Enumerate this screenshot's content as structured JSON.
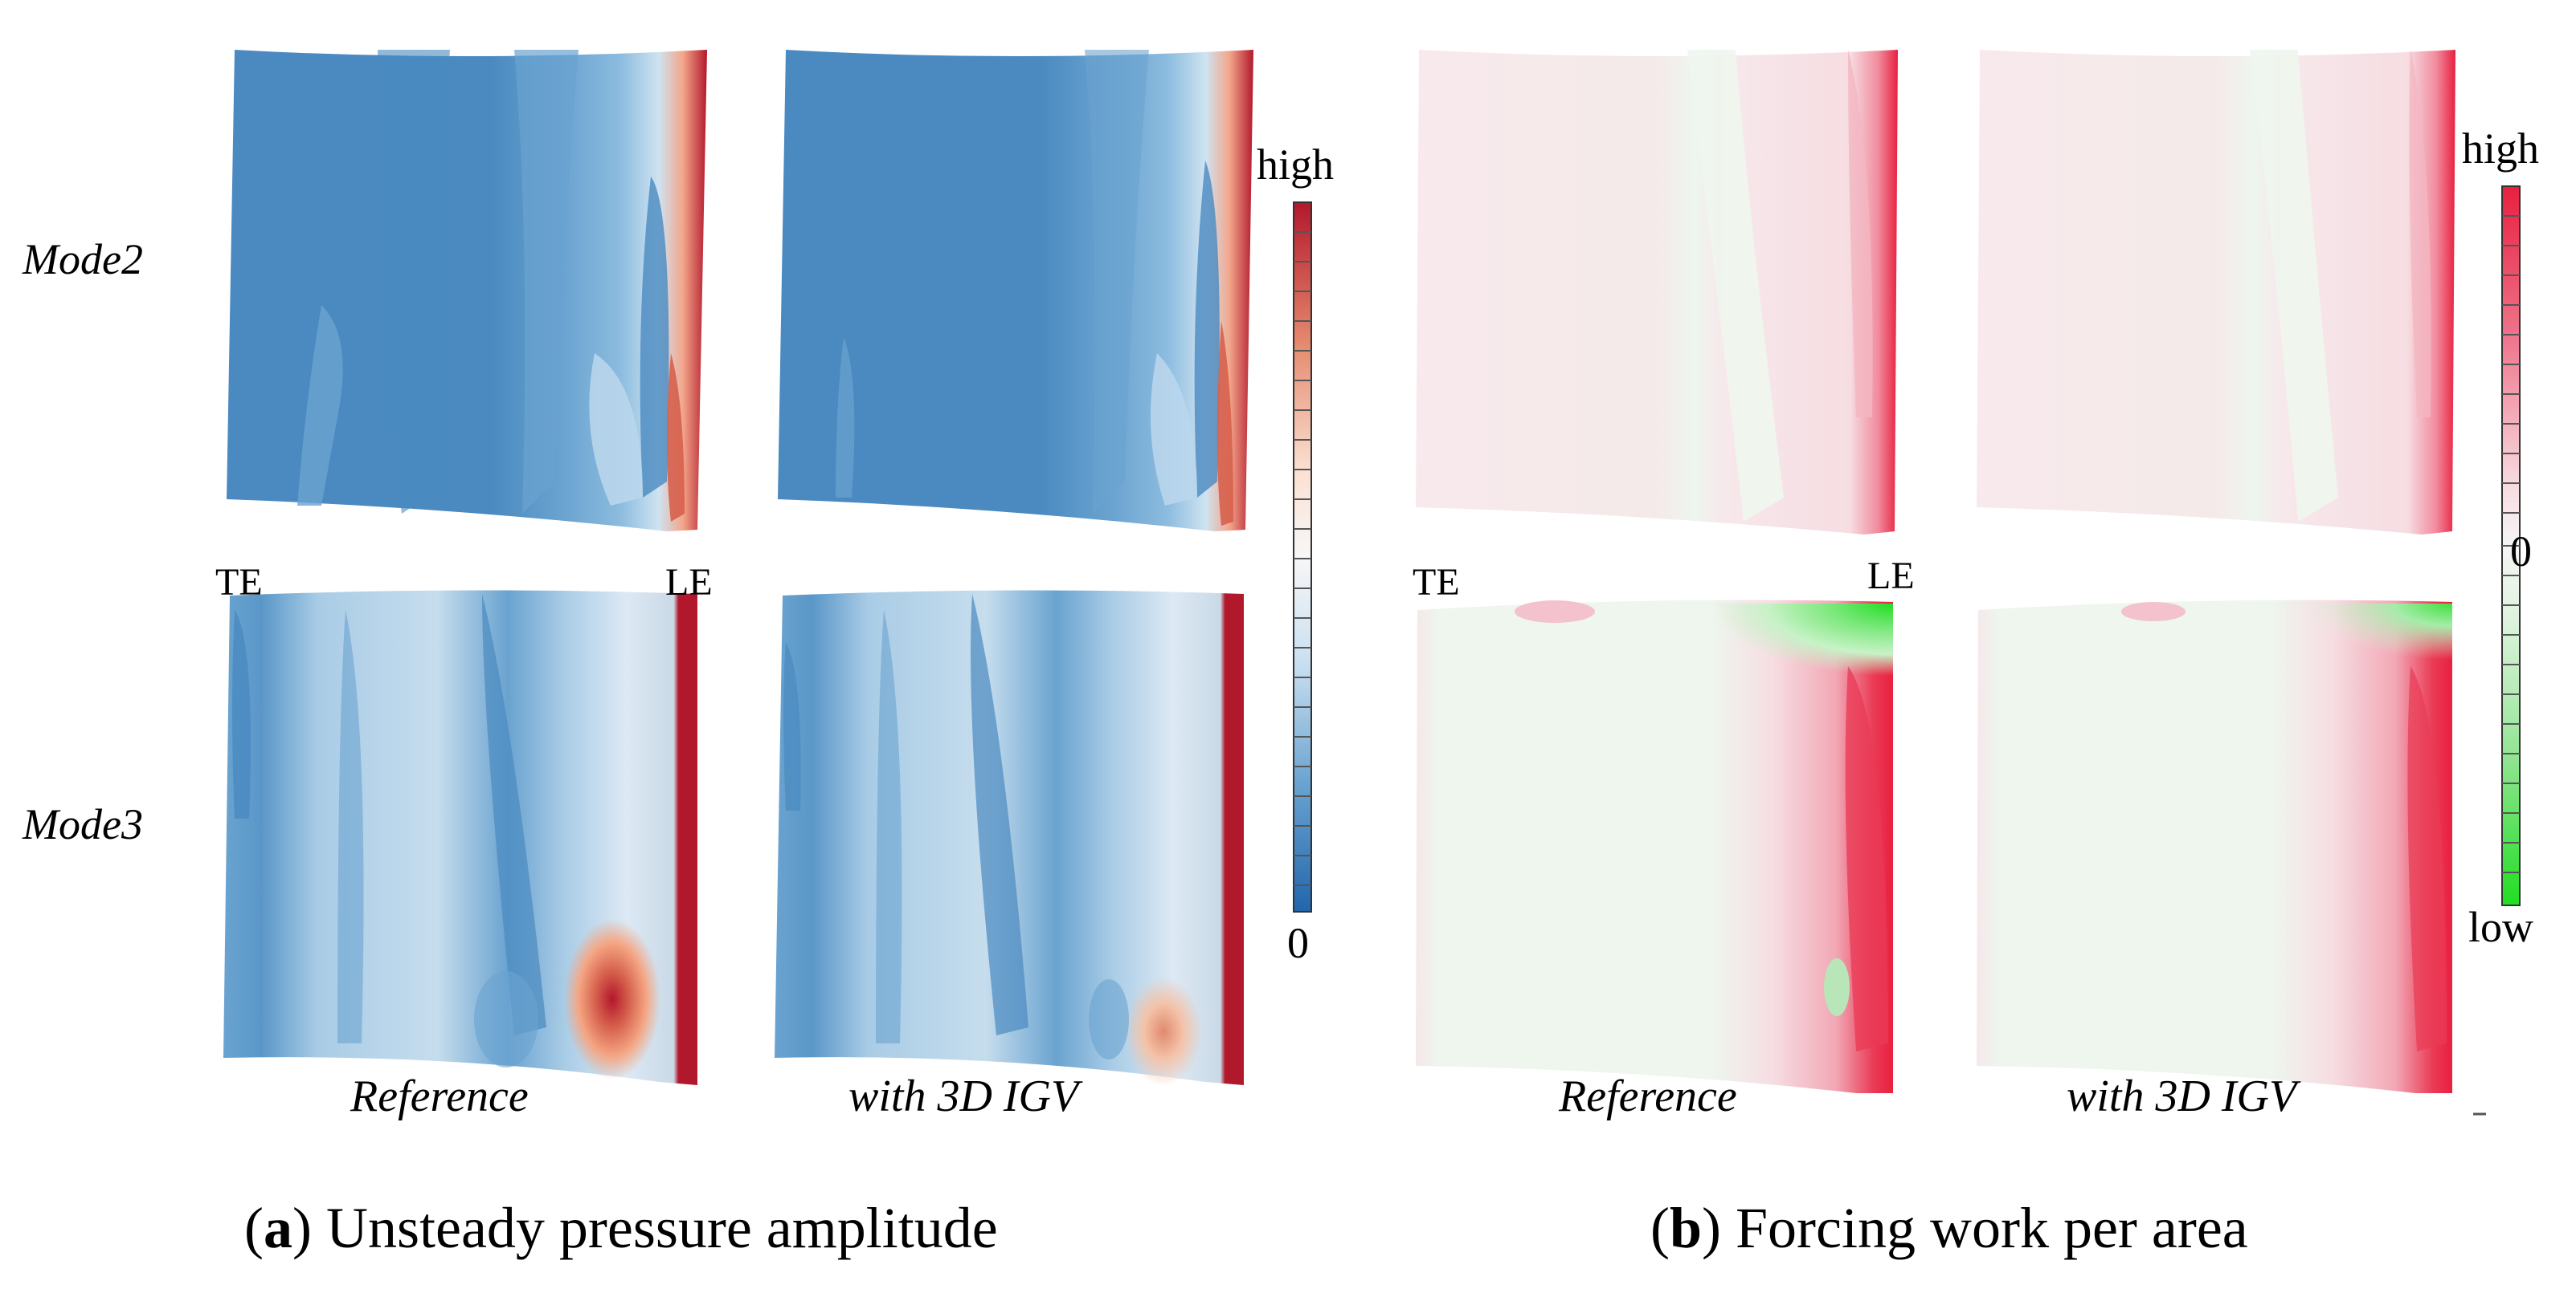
{
  "panel_a": {
    "caption_letter": "a",
    "caption_text": "Unsteady pressure amplitude",
    "row_labels": [
      "Mode2",
      "Mode3"
    ],
    "column_labels": [
      "Reference",
      "with 3D IGV"
    ],
    "edge_labels": {
      "trailing": "TE",
      "leading": "LE"
    },
    "colorbar": {
      "top": "high",
      "bottom": "0",
      "colors": [
        "#b2182b",
        "#f4a582",
        "#f7f7f7",
        "#92c5de",
        "#2166ac"
      ]
    }
  },
  "panel_b": {
    "caption_letter": "b",
    "caption_text": "Forcing work per area",
    "column_labels": [
      "Reference",
      "with 3D IGV"
    ],
    "edge_labels": {
      "trailing": "TE",
      "leading": "LE"
    },
    "colorbar": {
      "top": "high",
      "middle": "0",
      "bottom": "low",
      "colors": [
        "#e8203f",
        "#f6cdd4",
        "#eef7ee",
        "#22dd22"
      ]
    }
  }
}
